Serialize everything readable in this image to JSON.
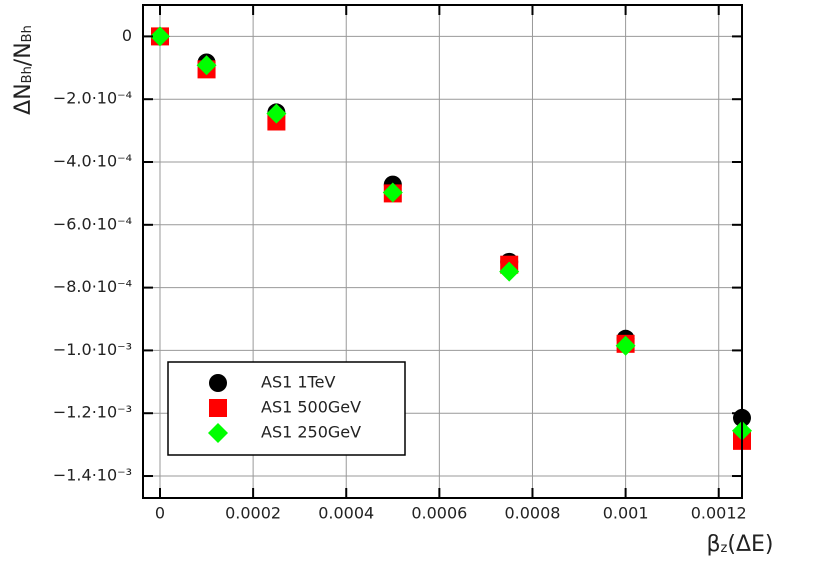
{
  "chart_data": {
    "type": "scatter",
    "x_label": [
      "β",
      "z",
      "(ΔE)"
    ],
    "y_label": [
      "ΔN",
      "Bh",
      "/N",
      "Bh"
    ],
    "x": [
      0,
      0.0001,
      0.00025,
      0.0005,
      0.00075,
      0.001,
      0.00125
    ],
    "series": [
      {
        "name": "AS1 1TeV",
        "color": "#000000",
        "marker": "circle",
        "values": [
          0,
          -8.3e-05,
          -0.000242,
          -0.000472,
          -0.000718,
          -0.000963,
          -0.001215
        ]
      },
      {
        "name": "AS1 500GeV",
        "color": "#ff0000",
        "marker": "square",
        "values": [
          0,
          -0.000105,
          -0.000271,
          -0.0005,
          -0.000727,
          -0.000979,
          -0.001288
        ]
      },
      {
        "name": "AS1 250GeV",
        "color": "#00ff00",
        "marker": "diamond",
        "values": [
          0,
          -9.2e-05,
          -0.000246,
          -0.000497,
          -0.000749,
          -0.000985,
          -0.001256
        ]
      }
    ],
    "xlim": [
      -3.65e-05,
      0.00125
    ],
    "ylim": [
      -0.00147,
      0.0001
    ],
    "xticks": [
      0,
      0.0002,
      0.0004,
      0.0006,
      0.0008,
      0.001,
      0.0012
    ],
    "yticks": [
      0,
      {
        "value": -0.0002,
        "label": "−2.0·10⁻⁴"
      },
      {
        "value": -0.0004,
        "label": "−4.0·10⁻⁴"
      },
      {
        "value": -0.0006,
        "label": "−6.0·10⁻⁴"
      },
      {
        "value": -0.0008,
        "label": "−8.0·10⁻⁴"
      },
      {
        "value": -0.001,
        "label": "−1.0·10⁻³"
      },
      {
        "value": -0.0012,
        "label": "−1.2·10⁻³"
      },
      {
        "value": -0.0014,
        "label": "−1.4·10⁻³"
      }
    ],
    "grid": true,
    "legend": "lower left"
  }
}
